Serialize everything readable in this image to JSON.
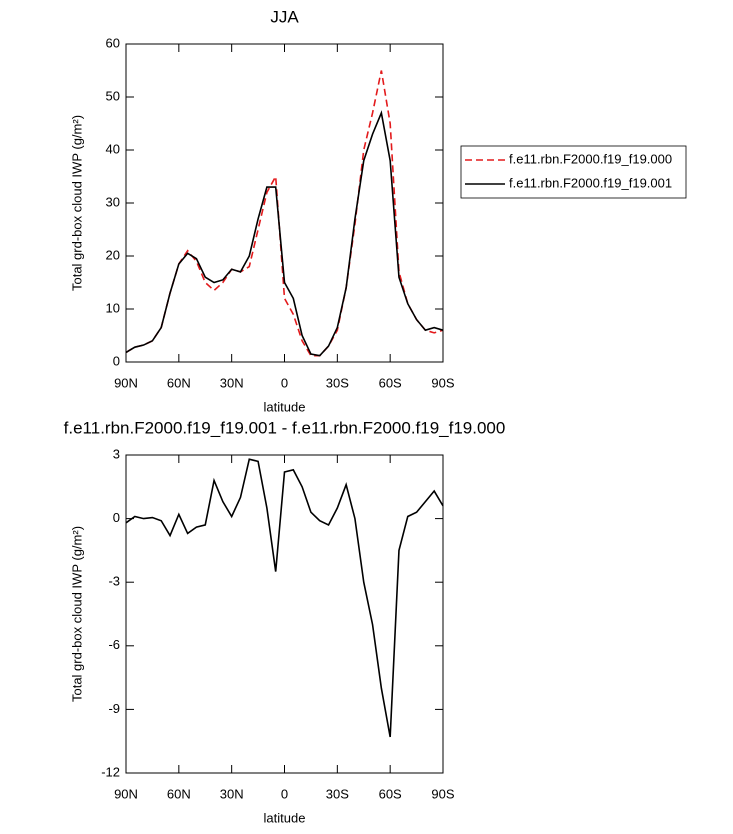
{
  "chart_data": [
    {
      "type": "line",
      "title": "JJA",
      "ylabel": "Total grd-box cloud IWP (g/m²)",
      "xlabel": "latitude",
      "x": [
        90,
        85,
        80,
        75,
        70,
        65,
        60,
        55,
        50,
        45,
        40,
        35,
        30,
        25,
        20,
        15,
        10,
        5,
        0,
        -5,
        -10,
        -15,
        -20,
        -25,
        -30,
        -35,
        -40,
        -45,
        -50,
        -55,
        -60,
        -65,
        -70,
        -75,
        -80,
        -85,
        -90
      ],
      "xlim": [
        90,
        -90
      ],
      "xticks": [
        {
          "value": 90,
          "label": "90N"
        },
        {
          "value": 60,
          "label": "60N"
        },
        {
          "value": 30,
          "label": "30N"
        },
        0,
        {
          "value": -30,
          "label": "30S"
        },
        {
          "value": -60,
          "label": "60S"
        },
        {
          "value": -90,
          "label": "90S"
        }
      ],
      "ylim": [
        0,
        60
      ],
      "yticks": [
        0,
        10,
        20,
        30,
        40,
        50,
        60
      ],
      "legend": "right",
      "series": [
        {
          "name": "f.e11.rbn.F2000.f19_f19.000",
          "color": "#e31a1c",
          "linestyle": "dashed",
          "values": [
            1.8,
            2.8,
            3.2,
            4,
            6.5,
            13,
            18.5,
            21,
            19,
            15,
            13.5,
            15,
            17.5,
            17,
            18,
            25,
            32,
            35,
            12,
            9,
            4,
            1.2,
            1.2,
            3,
            6,
            14,
            26,
            40,
            47,
            55,
            45,
            17,
            11,
            8,
            6,
            5.5,
            6
          ]
        },
        {
          "name": "f.e11.rbn.F2000.f19_f19.001",
          "color": "#000000",
          "linestyle": "solid",
          "values": [
            1.8,
            2.8,
            3.2,
            4,
            6.5,
            13,
            18.5,
            20.5,
            19.5,
            16,
            15,
            15.5,
            17.5,
            17,
            20,
            27,
            33,
            33,
            15,
            12,
            5,
            1.5,
            1.2,
            3,
            6.5,
            14,
            27,
            38,
            43,
            47,
            38,
            16,
            11,
            8,
            6,
            6.5,
            6
          ]
        }
      ]
    },
    {
      "type": "line",
      "title": "f.e11.rbn.F2000.f19_f19.001 - f.e11.rbn.F2000.f19_f19.000",
      "ylabel": "Total grd-box cloud IWP (g/m²)",
      "xlabel": "latitude",
      "x": [
        90,
        85,
        80,
        75,
        70,
        65,
        60,
        55,
        50,
        45,
        40,
        35,
        30,
        25,
        20,
        15,
        10,
        5,
        0,
        -5,
        -10,
        -15,
        -20,
        -25,
        -30,
        -35,
        -40,
        -45,
        -50,
        -55,
        -60,
        -65,
        -70,
        -75,
        -80,
        -85,
        -90
      ],
      "xlim": [
        90,
        -90
      ],
      "xticks": [
        {
          "value": 90,
          "label": "90N"
        },
        {
          "value": 60,
          "label": "60N"
        },
        {
          "value": 30,
          "label": "30N"
        },
        0,
        {
          "value": -30,
          "label": "30S"
        },
        {
          "value": -60,
          "label": "60S"
        },
        {
          "value": -90,
          "label": "90S"
        }
      ],
      "ylim": [
        -12,
        3
      ],
      "yticks": [
        -12,
        -9,
        -6,
        -3,
        0,
        3
      ],
      "color": "#000000",
      "values": [
        -0.2,
        0.1,
        0,
        0.05,
        -0.1,
        -0.8,
        0.2,
        -0.7,
        -0.4,
        -0.3,
        1.8,
        0.8,
        0.1,
        1,
        2.8,
        2.7,
        0.5,
        -2.5,
        2.2,
        2.3,
        1.5,
        0.3,
        -0.1,
        -0.3,
        0.5,
        1.6,
        0,
        -3,
        -5,
        -8,
        -10.3,
        -1.5,
        0.1,
        0.3,
        0.8,
        1.3,
        0.6
      ]
    }
  ]
}
